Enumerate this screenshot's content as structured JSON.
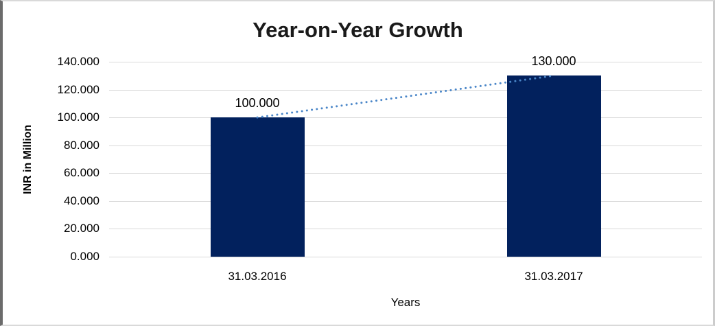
{
  "chart_data": {
    "type": "bar",
    "title": "Year-on-Year Growth",
    "xlabel": "Years",
    "ylabel": "INR in Million",
    "categories": [
      "31.03.2016",
      "31.03.2017"
    ],
    "values": [
      100,
      130
    ],
    "value_labels": [
      "100.000",
      "130.000"
    ],
    "yticks": [
      "0.000",
      "20.000",
      "40.000",
      "60.000",
      "80.000",
      "100.000",
      "120.000",
      "140.000"
    ],
    "ylim": [
      0,
      140
    ],
    "grid": true,
    "legend": false,
    "trendline": {
      "type": "linear",
      "style": "dotted",
      "from_value": 100,
      "to_value": 130
    },
    "colors": {
      "bar": "#02215D",
      "trendline": "#4A86C8",
      "gridline": "#D9D9D9",
      "title_text": "#1A1A1A",
      "axis_text": "#000000"
    }
  }
}
